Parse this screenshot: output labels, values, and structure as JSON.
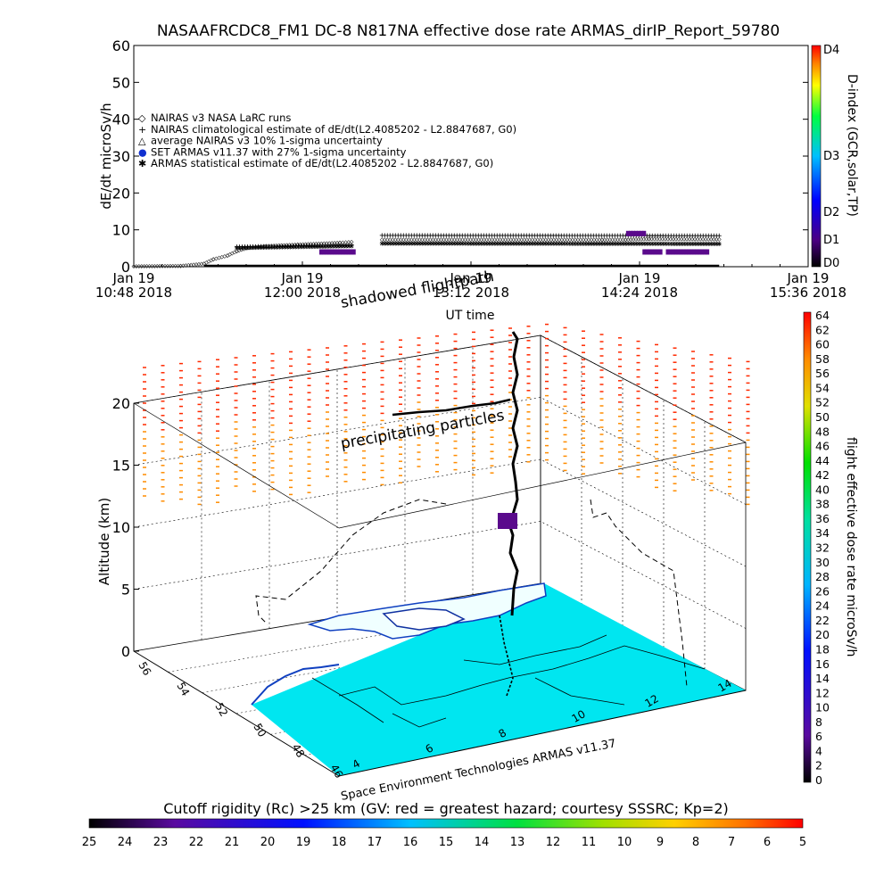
{
  "header": {
    "title": "NASAAFRCDC8_FM1 DC-8    N817NA effective dose rate ARMAS_dirIP_Report_59780"
  },
  "chart_data": [
    {
      "type": "scatter",
      "title": "NASAAFRCDC8_FM1 DC-8    N817NA effective dose rate ARMAS_dirIP_Report_59780",
      "ylabel": "dE/dt microSv/h",
      "xlabel": "UT time",
      "ylim": [
        0,
        60
      ],
      "yticks": [
        "0",
        "10",
        "20",
        "30",
        "40",
        "50",
        "60"
      ],
      "xlim_minutes": [
        0,
        288
      ],
      "x_tick_dates": [
        "Jan 19",
        "Jan 19",
        "Jan 19",
        "Jan 19",
        "Jan 19"
      ],
      "x_tick_times": [
        "10:48 2018",
        "12:00 2018",
        "13:12 2018",
        "14:24 2018",
        "15:36 2018"
      ],
      "legend": [
        {
          "symbol": "◇",
          "text": "NAIRAS v3 NASA LaRC runs"
        },
        {
          "symbol": "+",
          "text": "NAIRAS climatological estimate of dE/dt(L2.4085202 - L2.8847687, G0)"
        },
        {
          "symbol": "△",
          "text": "average NAIRAS v3 10% 1-sigma uncertainty"
        },
        {
          "symbol": "●",
          "text": "SET ARMAS v11.37 with 27% 1-sigma uncertainty"
        },
        {
          "symbol": "✱",
          "text": "ARMAS statistical estimate of dE/dt(L2.4085202 - L2.8847687, G0)"
        }
      ],
      "series": [
        {
          "name": "NAIRAS v3 NASA LaRC runs",
          "segments": [
            {
              "x": [
                0,
                20,
                30,
                34,
                40,
                44,
                48,
                56,
                70,
                88,
                93
              ],
              "y": [
                0.1,
                0.2,
                0.8,
                2.0,
                3.0,
                4.2,
                5.0,
                5.5,
                6.0,
                6.5,
                6.7
              ]
            },
            {
              "x": [
                106,
                200,
                210,
                220,
                250
              ],
              "y": [
                7.3,
                7.3,
                7.3,
                7.5,
                7.4
              ]
            }
          ]
        },
        {
          "name": "NAIRAS climatological estimate of dE/dt(L2.4085202 - L2.8847687, G0)",
          "segments": [
            {
              "x": [
                44,
                93
              ],
              "y": [
                5.4,
                5.9
              ]
            },
            {
              "x": [
                106,
                250
              ],
              "y": [
                8.5,
                8.4
              ]
            }
          ]
        },
        {
          "name": "ARMAS statistical estimate of dE/dt(L2.4085202 - L2.8847687, G0)",
          "segments": [
            {
              "x": [
                44,
                93
              ],
              "y": [
                5.1,
                5.6
              ]
            },
            {
              "x": [
                106,
                250
              ],
              "y": [
                6.3,
                6.2
              ]
            }
          ]
        },
        {
          "name": "SET ARMAS v11.37 with 27% 1-sigma uncertainty",
          "segments": [
            {
              "x": [
                80,
                94
              ],
              "y": [
                4.0,
                4.0
              ]
            },
            {
              "x": [
                211,
                218
              ],
              "y": [
                9.0,
                9.0
              ]
            },
            {
              "x": [
                218,
                225
              ],
              "y": [
                4.0,
                4.0
              ]
            },
            {
              "x": [
                228,
                245
              ],
              "y": [
                4.0,
                4.0
              ]
            }
          ]
        }
      ],
      "d_index_axis": {
        "label": "D-index (GCR,solar,TP)",
        "ticks": [
          "D0",
          "D1",
          "D2",
          "D3",
          "D4"
        ]
      }
    },
    {
      "type": "scatter",
      "zlabel": "Altitude (km)",
      "zticks": [
        "0",
        "5",
        "10",
        "15",
        "20"
      ],
      "lat_ticks": [
        "56",
        "54",
        "52",
        "50",
        "48",
        "46"
      ],
      "lon_ticks": [
        "4",
        "6",
        "8",
        "10",
        "12",
        "14"
      ],
      "annotations": [
        "shadowed flightpath",
        "precipitating particles",
        "Space Environment Technologies ARMAS v11.37"
      ],
      "colorbar_right": {
        "label": "flight effective dose rate microSv/h",
        "ticks": [
          "0",
          "2",
          "4",
          "6",
          "8",
          "10",
          "12",
          "14",
          "16",
          "18",
          "20",
          "22",
          "24",
          "26",
          "28",
          "30",
          "32",
          "34",
          "36",
          "38",
          "40",
          "42",
          "44",
          "46",
          "48",
          "50",
          "52",
          "54",
          "56",
          "58",
          "60",
          "62",
          "64"
        ]
      },
      "colorbar_bottom": {
        "label": "Cutoff rigidity (Rc) >25 km (GV: red = greatest hazard; courtesy SSSRC; Kp=2)",
        "ticks": [
          "25",
          "24",
          "23",
          "22",
          "21",
          "20",
          "19",
          "18",
          "17",
          "16",
          "15",
          "14",
          "13",
          "12",
          "11",
          "10",
          "9",
          "8",
          "7",
          "6",
          "5"
        ]
      }
    }
  ],
  "colors": {
    "map_fill": "#00e6f0",
    "land": "#e6ffff",
    "precip_top": "#ff2a00",
    "precip_low": "#ff8c00",
    "track": "#000000",
    "armas": "#5a0a8c"
  }
}
